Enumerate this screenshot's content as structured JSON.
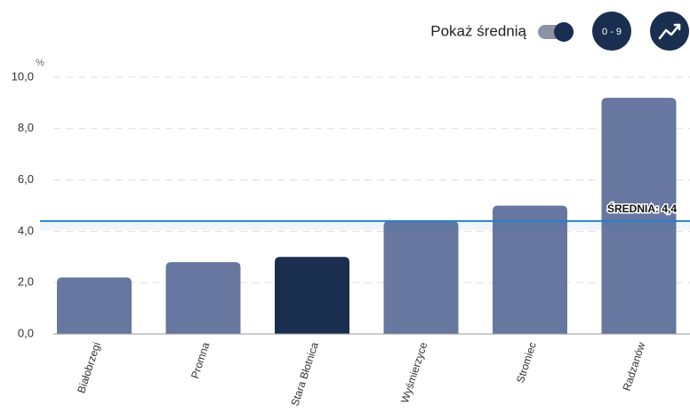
{
  "chart_data": {
    "type": "bar",
    "categories": [
      "Białobrzegi",
      "Promna",
      "Stara Błotnica",
      "Wyśmierzyce",
      "Stromiec",
      "Radzanów"
    ],
    "values": [
      2.2,
      2.8,
      3.0,
      4.4,
      5.0,
      9.2
    ],
    "colors": [
      "#67779f",
      "#67779f",
      "#1a2e4f",
      "#67779f",
      "#67779f",
      "#67779f"
    ],
    "y_unit": "%",
    "ylim": [
      0,
      10
    ],
    "yticks": [
      {
        "value": 0,
        "label": "0,0"
      },
      {
        "value": 2,
        "label": "2,0"
      },
      {
        "value": 4,
        "label": "4,0"
      },
      {
        "value": 6,
        "label": "6,0"
      },
      {
        "value": 8,
        "label": "8,0"
      },
      {
        "value": 10,
        "label": "10,0"
      }
    ],
    "grid": true,
    "show_average": true,
    "average": 4.4,
    "average_label": "ŚREDNIA: 4,4",
    "average_color": "#2a7fd0"
  },
  "controls": {
    "show_average_label": "Pokaż średnią",
    "range_button": "0 - 9"
  }
}
